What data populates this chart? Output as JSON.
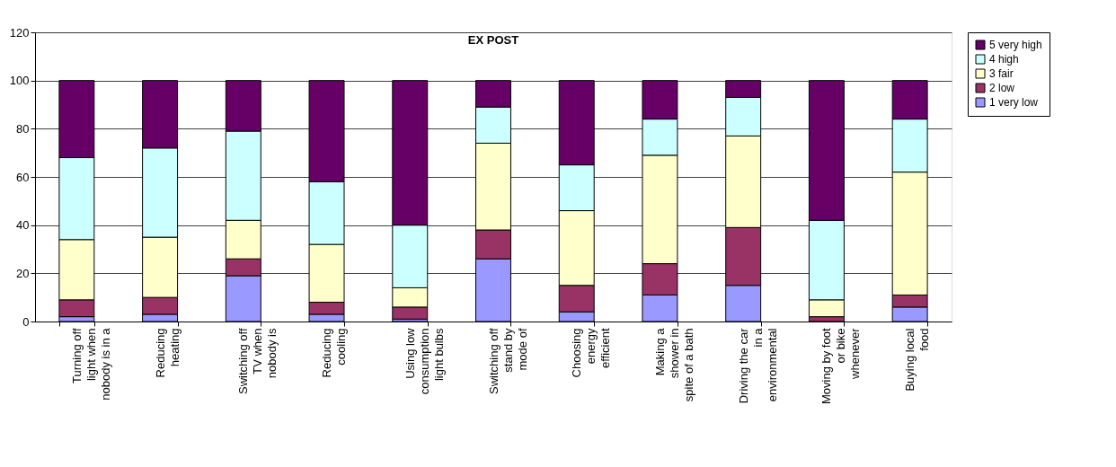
{
  "chart_data": {
    "type": "bar",
    "title": "EX POST",
    "stacked": true,
    "categories": [
      "Turning off\nlight when\nnobody is in a",
      "Reducing\nheating",
      "Switching off\nTV when\nnobody is",
      "Reducing\ncooling",
      "Using low\nconsumption\nlight bulbs",
      "Switching off\nstand by\nmode of",
      "Choosing\nenergy\nefficient",
      "Making a\nshower in\nspite of a bath",
      "Driving the car\nin a\nenvironmental",
      "Moving by foot\nor bike\nwhenever",
      "Buying local\nfood"
    ],
    "series": [
      {
        "name": "1 very low",
        "color": "#9999ff",
        "values": [
          2,
          3,
          19,
          3,
          1,
          26,
          4,
          11,
          15,
          0,
          6
        ]
      },
      {
        "name": "2 low",
        "color": "#993366",
        "values": [
          7,
          7,
          7,
          5,
          5,
          12,
          11,
          13,
          24,
          2,
          5
        ]
      },
      {
        "name": "3 fair",
        "color": "#ffffcc",
        "values": [
          25,
          25,
          16,
          24,
          8,
          36,
          31,
          45,
          38,
          7,
          51
        ]
      },
      {
        "name": "4 high",
        "color": "#ccffff",
        "values": [
          34,
          37,
          37,
          26,
          26,
          15,
          19,
          15,
          16,
          33,
          22
        ]
      },
      {
        "name": "5 very high",
        "color": "#660066",
        "values": [
          32,
          28,
          21,
          42,
          60,
          11,
          35,
          16,
          7,
          58,
          16
        ]
      }
    ],
    "ylim": [
      0,
      120
    ],
    "yticks": [
      0,
      20,
      40,
      60,
      80,
      100,
      120
    ],
    "grid": "y",
    "legend": "right"
  }
}
